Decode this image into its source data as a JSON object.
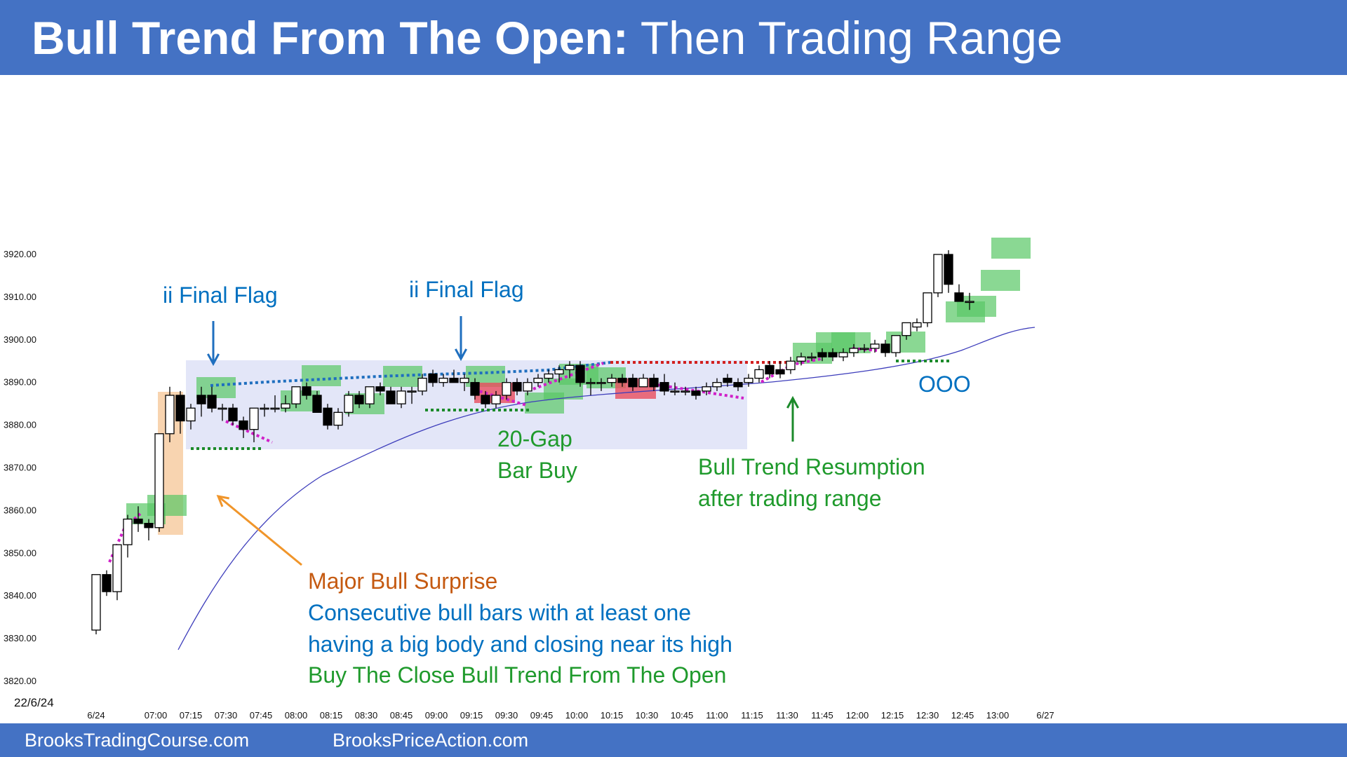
{
  "header": {
    "title_bold": "Bull Trend From The Open:",
    "title_rest": "Then Trading Range",
    "bg": "#4472c4"
  },
  "footer": {
    "left": "BrooksTradingCourse.com",
    "right": "BrooksPriceAction.com"
  },
  "chart_data": {
    "type": "candlestick",
    "title": "Bull Trend From The Open: Then Trading Range",
    "date_label": "22/6/24",
    "ylim": [
      3820,
      3920
    ],
    "y_ticks": [
      "3920.00",
      "3910.00",
      "3900.00",
      "3890.00",
      "3880.00",
      "3870.00",
      "3860.00",
      "3850.00",
      "3840.00",
      "3830.00",
      "3820.00"
    ],
    "x_ticks": [
      "6/24",
      "07:00",
      "07:15",
      "07:30",
      "07:45",
      "08:00",
      "08:15",
      "08:30",
      "08:45",
      "09:00",
      "09:15",
      "09:30",
      "09:45",
      "10:00",
      "10:15",
      "10:30",
      "10:45",
      "11:00",
      "11:15",
      "11:30",
      "11:45",
      "12:00",
      "12:15",
      "12:30",
      "12:45",
      "13:00",
      "6/27"
    ],
    "bars": [
      {
        "o": 3832,
        "h": 3845,
        "l": 3831,
        "c": 3845
      },
      {
        "o": 3845,
        "h": 3846,
        "l": 3840,
        "c": 3841
      },
      {
        "o": 3841,
        "h": 3852,
        "l": 3839,
        "c": 3852
      },
      {
        "o": 3852,
        "h": 3859,
        "l": 3849,
        "c": 3858
      },
      {
        "o": 3858,
        "h": 3861,
        "l": 3855,
        "c": 3857
      },
      {
        "o": 3857,
        "h": 3858,
        "l": 3853,
        "c": 3856
      },
      {
        "o": 3856,
        "h": 3878,
        "l": 3855,
        "c": 3878
      },
      {
        "o": 3878,
        "h": 3889,
        "l": 3876,
        "c": 3887
      },
      {
        "o": 3887,
        "h": 3888,
        "l": 3878,
        "c": 3881
      },
      {
        "o": 3881,
        "h": 3885,
        "l": 3879,
        "c": 3884
      },
      {
        "o": 3887,
        "h": 3889,
        "l": 3882,
        "c": 3885
      },
      {
        "o": 3887,
        "h": 3889,
        "l": 3883,
        "c": 3884
      },
      {
        "o": 3884,
        "h": 3885,
        "l": 3881,
        "c": 3884
      },
      {
        "o": 3884,
        "h": 3885,
        "l": 3880,
        "c": 3881
      },
      {
        "o": 3881,
        "h": 3882,
        "l": 3877,
        "c": 3879
      },
      {
        "o": 3879,
        "h": 3884,
        "l": 3876,
        "c": 3884
      },
      {
        "o": 3884,
        "h": 3885,
        "l": 3882,
        "c": 3884
      },
      {
        "o": 3884,
        "h": 3887,
        "l": 3883,
        "c": 3884
      },
      {
        "o": 3884,
        "h": 3887,
        "l": 3883,
        "c": 3885
      },
      {
        "o": 3885,
        "h": 3889,
        "l": 3884,
        "c": 3889
      },
      {
        "o": 3889,
        "h": 3890,
        "l": 3886,
        "c": 3887
      },
      {
        "o": 3887,
        "h": 3888,
        "l": 3883,
        "c": 3883
      },
      {
        "o": 3884,
        "h": 3885,
        "l": 3879,
        "c": 3880
      },
      {
        "o": 3880,
        "h": 3884,
        "l": 3879,
        "c": 3883
      },
      {
        "o": 3883,
        "h": 3888,
        "l": 3882,
        "c": 3887
      },
      {
        "o": 3887,
        "h": 3888,
        "l": 3884,
        "c": 3885
      },
      {
        "o": 3885,
        "h": 3889,
        "l": 3884,
        "c": 3889
      },
      {
        "o": 3889,
        "h": 3890,
        "l": 3887,
        "c": 3888
      },
      {
        "o": 3888,
        "h": 3889,
        "l": 3885,
        "c": 3885
      },
      {
        "o": 3885,
        "h": 3889,
        "l": 3884,
        "c": 3888
      },
      {
        "o": 3888,
        "h": 3889,
        "l": 3885,
        "c": 3888
      },
      {
        "o": 3888,
        "h": 3892,
        "l": 3887,
        "c": 3891
      },
      {
        "o": 3892,
        "h": 3893,
        "l": 3889,
        "c": 3890
      },
      {
        "o": 3890,
        "h": 3892,
        "l": 3889,
        "c": 3891
      },
      {
        "o": 3891,
        "h": 3893,
        "l": 3890,
        "c": 3890
      },
      {
        "o": 3890,
        "h": 3892,
        "l": 3888,
        "c": 3891
      },
      {
        "o": 3890,
        "h": 3891,
        "l": 3886,
        "c": 3887
      },
      {
        "o": 3887,
        "h": 3888,
        "l": 3884,
        "c": 3885
      },
      {
        "o": 3885,
        "h": 3888,
        "l": 3884,
        "c": 3887
      },
      {
        "o": 3887,
        "h": 3891,
        "l": 3886,
        "c": 3890
      },
      {
        "o": 3890,
        "h": 3891,
        "l": 3887,
        "c": 3888
      },
      {
        "o": 3888,
        "h": 3891,
        "l": 3887,
        "c": 3890
      },
      {
        "o": 3890,
        "h": 3892,
        "l": 3889,
        "c": 3891
      },
      {
        "o": 3891,
        "h": 3893,
        "l": 3890,
        "c": 3892
      },
      {
        "o": 3892,
        "h": 3894,
        "l": 3890,
        "c": 3893
      },
      {
        "o": 3893,
        "h": 3895,
        "l": 3891,
        "c": 3894
      },
      {
        "o": 3894,
        "h": 3895,
        "l": 3889,
        "c": 3890
      },
      {
        "o": 3890,
        "h": 3891,
        "l": 3887,
        "c": 3890
      },
      {
        "o": 3890,
        "h": 3891,
        "l": 3888,
        "c": 3890
      },
      {
        "o": 3890,
        "h": 3892,
        "l": 3889,
        "c": 3891
      },
      {
        "o": 3891,
        "h": 3892,
        "l": 3889,
        "c": 3890
      },
      {
        "o": 3891,
        "h": 3892,
        "l": 3888,
        "c": 3889
      },
      {
        "o": 3889,
        "h": 3892,
        "l": 3889,
        "c": 3891
      },
      {
        "o": 3891,
        "h": 3892,
        "l": 3888,
        "c": 3889
      },
      {
        "o": 3890,
        "h": 3892,
        "l": 3887,
        "c": 3888
      },
      {
        "o": 3888,
        "h": 3890,
        "l": 3887,
        "c": 3888
      },
      {
        "o": 3888,
        "h": 3889,
        "l": 3887,
        "c": 3888
      },
      {
        "o": 3888,
        "h": 3889,
        "l": 3886,
        "c": 3887
      },
      {
        "o": 3888,
        "h": 3890,
        "l": 3887,
        "c": 3889
      },
      {
        "o": 3889,
        "h": 3891,
        "l": 3888,
        "c": 3890
      },
      {
        "o": 3891,
        "h": 3892,
        "l": 3889,
        "c": 3890
      },
      {
        "o": 3890,
        "h": 3891,
        "l": 3888,
        "c": 3889
      },
      {
        "o": 3890,
        "h": 3892,
        "l": 3889,
        "c": 3891
      },
      {
        "o": 3891,
        "h": 3894,
        "l": 3890,
        "c": 3893
      },
      {
        "o": 3894,
        "h": 3895,
        "l": 3891,
        "c": 3892
      },
      {
        "o": 3893,
        "h": 3895,
        "l": 3891,
        "c": 3892
      },
      {
        "o": 3893,
        "h": 3896,
        "l": 3892,
        "c": 3895
      },
      {
        "o": 3895,
        "h": 3897,
        "l": 3894,
        "c": 3896
      },
      {
        "o": 3896,
        "h": 3897,
        "l": 3895,
        "c": 3896
      },
      {
        "o": 3897,
        "h": 3898,
        "l": 3895,
        "c": 3896
      },
      {
        "o": 3897,
        "h": 3898,
        "l": 3895,
        "c": 3896
      },
      {
        "o": 3896,
        "h": 3898,
        "l": 3895,
        "c": 3897
      },
      {
        "o": 3897,
        "h": 3899,
        "l": 3896,
        "c": 3898
      },
      {
        "o": 3898,
        "h": 3899,
        "l": 3897,
        "c": 3898
      },
      {
        "o": 3898,
        "h": 3900,
        "l": 3897,
        "c": 3899
      },
      {
        "o": 3899,
        "h": 3900,
        "l": 3896,
        "c": 3897
      },
      {
        "o": 3897,
        "h": 3901,
        "l": 3896,
        "c": 3901
      },
      {
        "o": 3901,
        "h": 3904,
        "l": 3900,
        "c": 3904
      },
      {
        "o": 3903,
        "h": 3905,
        "l": 3902,
        "c": 3904
      },
      {
        "o": 3904,
        "h": 3911,
        "l": 3903,
        "c": 3911
      },
      {
        "o": 3911,
        "h": 3920,
        "l": 3910,
        "c": 3920
      },
      {
        "o": 3920,
        "h": 3921,
        "l": 3911,
        "c": 3913
      },
      {
        "o": 3911,
        "h": 3913,
        "l": 3909,
        "c": 3909
      },
      {
        "o": 3909,
        "h": 3911,
        "l": 3907,
        "c": 3909
      }
    ],
    "ema": [
      [
        0,
        3828
      ],
      [
        6,
        3847
      ],
      [
        12,
        3862
      ],
      [
        20,
        3875
      ],
      [
        30,
        3882
      ],
      [
        40,
        3885
      ],
      [
        50,
        3888
      ],
      [
        60,
        3890
      ],
      [
        70,
        3894
      ],
      [
        76,
        3898
      ],
      [
        80,
        3902
      ],
      [
        84,
        3903
      ]
    ],
    "annotations": [
      {
        "text": "ii Final Flag",
        "color": "#0070c0"
      },
      {
        "text": "ii Final Flag",
        "color": "#0070c0"
      },
      {
        "text": "20-Gap",
        "color": "#1f9a2c"
      },
      {
        "text": "Bar Buy",
        "color": "#1f9a2c"
      },
      {
        "text": "Bull Trend Resumption",
        "color": "#1f9a2c"
      },
      {
        "text": "after trading range",
        "color": "#1f9a2c"
      },
      {
        "text": "OOO",
        "color": "#0070c0"
      },
      {
        "text": "Major Bull Surprise",
        "color": "#c55a11"
      },
      {
        "text": "Consecutive bull bars with at least one",
        "color": "#0070c0"
      },
      {
        "text": "having a big body and closing near its high",
        "color": "#0070c0"
      },
      {
        "text": "Buy The Close Bull Trend From The Open",
        "color": "#1f9a2c"
      }
    ],
    "colors": {
      "range_box": "#d9def5",
      "green_box": "#58c865",
      "red_box": "#e84e5e",
      "ema": "#3d3dbb",
      "magenta": "#d020c8",
      "blue_dot": "#1f6fbf",
      "red_dot": "#d32020",
      "green_dot": "#1b8a2a",
      "orange": "#f0a050"
    }
  }
}
